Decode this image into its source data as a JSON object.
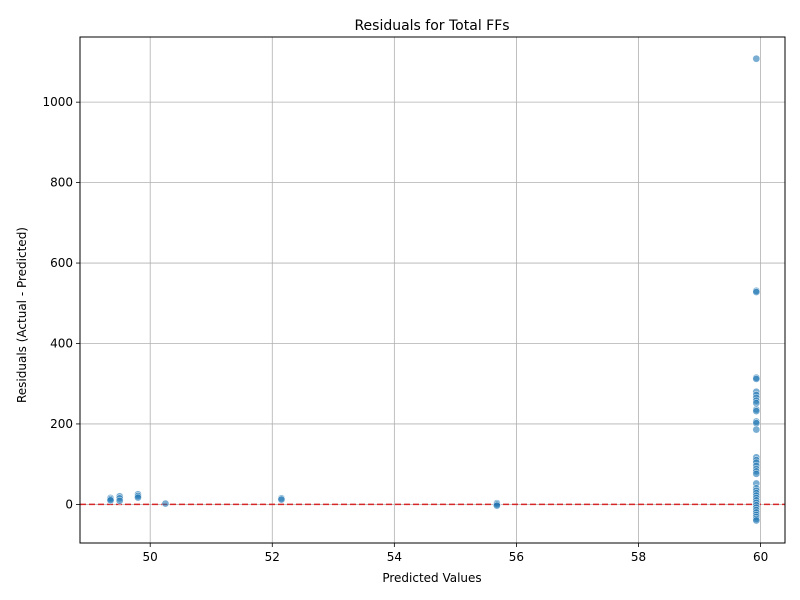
{
  "chart_data": {
    "type": "scatter",
    "title": "Residuals for Total FFs",
    "xlabel": "Predicted Values",
    "ylabel": "Residuals (Actual - Predicted)",
    "xlim": [
      48.85,
      60.4
    ],
    "ylim": [
      -96,
      1162
    ],
    "xticks": [
      50,
      52,
      54,
      56,
      58,
      60
    ],
    "yticks": [
      0,
      200,
      400,
      600,
      800,
      1000
    ],
    "grid": true,
    "point_color": "#1f77b4",
    "reference_line": {
      "y": 0,
      "color": "#d62728",
      "style": "dashed"
    },
    "points": [
      {
        "x": 49.35,
        "y": 16
      },
      {
        "x": 49.35,
        "y": 13
      },
      {
        "x": 49.35,
        "y": 10
      },
      {
        "x": 49.5,
        "y": 20
      },
      {
        "x": 49.5,
        "y": 15
      },
      {
        "x": 49.5,
        "y": 9
      },
      {
        "x": 49.8,
        "y": 25
      },
      {
        "x": 49.8,
        "y": 21
      },
      {
        "x": 49.8,
        "y": 17
      },
      {
        "x": 50.25,
        "y": 2
      },
      {
        "x": 52.15,
        "y": 15
      },
      {
        "x": 52.15,
        "y": 12
      },
      {
        "x": 55.68,
        "y": 3
      },
      {
        "x": 55.68,
        "y": 0
      },
      {
        "x": 55.68,
        "y": -3
      },
      {
        "x": 59.93,
        "y": 1108
      },
      {
        "x": 59.93,
        "y": 531
      },
      {
        "x": 59.93,
        "y": 528
      },
      {
        "x": 59.93,
        "y": 315
      },
      {
        "x": 59.93,
        "y": 312
      },
      {
        "x": 59.93,
        "y": 280
      },
      {
        "x": 59.93,
        "y": 272
      },
      {
        "x": 59.93,
        "y": 265
      },
      {
        "x": 59.93,
        "y": 258
      },
      {
        "x": 59.93,
        "y": 252
      },
      {
        "x": 59.93,
        "y": 236
      },
      {
        "x": 59.93,
        "y": 232
      },
      {
        "x": 59.93,
        "y": 206
      },
      {
        "x": 59.93,
        "y": 202
      },
      {
        "x": 59.93,
        "y": 186
      },
      {
        "x": 59.93,
        "y": 117
      },
      {
        "x": 59.93,
        "y": 110
      },
      {
        "x": 59.93,
        "y": 104
      },
      {
        "x": 59.93,
        "y": 96
      },
      {
        "x": 59.93,
        "y": 88
      },
      {
        "x": 59.93,
        "y": 82
      },
      {
        "x": 59.93,
        "y": 76
      },
      {
        "x": 59.93,
        "y": 52
      },
      {
        "x": 59.93,
        "y": 40
      },
      {
        "x": 59.93,
        "y": 34
      },
      {
        "x": 59.93,
        "y": 28
      },
      {
        "x": 59.93,
        "y": 22
      },
      {
        "x": 59.93,
        "y": 16
      },
      {
        "x": 59.93,
        "y": 10
      },
      {
        "x": 59.93,
        "y": 4
      },
      {
        "x": 59.93,
        "y": -2
      },
      {
        "x": 59.93,
        "y": -8
      },
      {
        "x": 59.93,
        "y": -14
      },
      {
        "x": 59.93,
        "y": -20
      },
      {
        "x": 59.93,
        "y": -26
      },
      {
        "x": 59.93,
        "y": -31
      },
      {
        "x": 59.93,
        "y": -36
      },
      {
        "x": 59.93,
        "y": -40
      }
    ]
  }
}
